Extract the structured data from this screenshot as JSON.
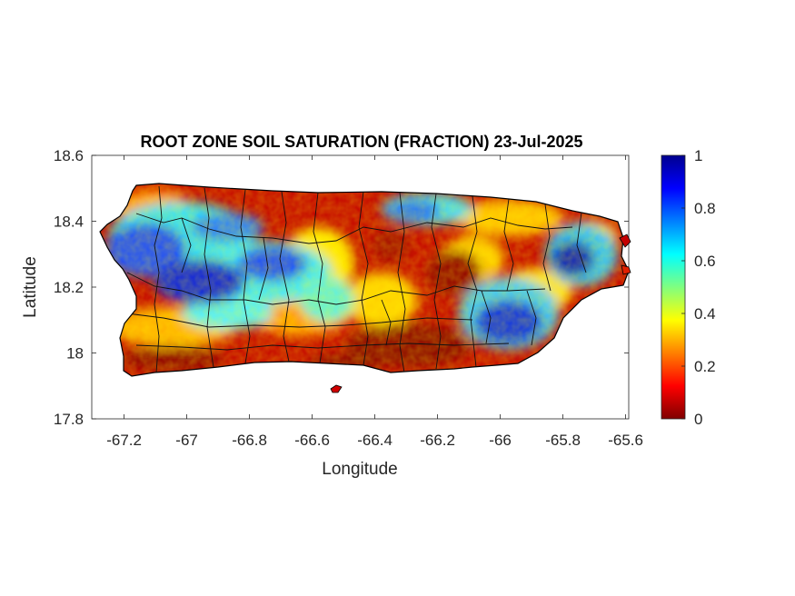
{
  "title": "ROOT ZONE SOIL SATURATION (FRACTION) 23-Jul-2025",
  "xlabel": "Longitude",
  "ylabel": "Latitude",
  "x_ticks": [
    "-67.2",
    "-67",
    "-66.8",
    "-66.6",
    "-66.4",
    "-66.2",
    "-66",
    "-65.8",
    "-65.6"
  ],
  "y_ticks": [
    "18.6",
    "18.4",
    "18.2",
    "18",
    "17.8"
  ],
  "colorbar_ticks": [
    "1",
    "0.8",
    "0.6",
    "0.4",
    "0.2",
    "0"
  ],
  "map_data": {
    "type": "heatmap",
    "region": "Puerto Rico",
    "variable": "root zone soil saturation (fraction)",
    "xlim": [
      -67.3,
      -65.6
    ],
    "ylim": [
      17.8,
      18.6
    ],
    "clim": [
      0,
      1
    ],
    "colormap": "jet",
    "features": [
      {
        "name": "wet-west",
        "lon": -67.1,
        "lat": 18.27,
        "value": 0.9
      },
      {
        "name": "wet-west-central",
        "lon": -66.8,
        "lat": 18.27,
        "value": 0.8
      },
      {
        "name": "wet-north-central",
        "lon": -66.5,
        "lat": 18.35,
        "value": 0.5
      },
      {
        "name": "wet-northeast-coast",
        "lon": -66.15,
        "lat": 18.4,
        "value": 0.7
      },
      {
        "name": "wet-el-yunque",
        "lon": -65.8,
        "lat": 18.3,
        "value": 0.95
      },
      {
        "name": "wet-southeast",
        "lon": -65.98,
        "lat": 18.08,
        "value": 0.9
      },
      {
        "name": "dry-south-coast",
        "lon": -66.4,
        "lat": 17.98,
        "value": 0.05
      },
      {
        "name": "dry-southwest",
        "lon": -67.05,
        "lat": 17.98,
        "value": 0.05
      },
      {
        "name": "dry-east-central",
        "lon": -66.15,
        "lat": 18.2,
        "value": 0.1
      }
    ]
  }
}
